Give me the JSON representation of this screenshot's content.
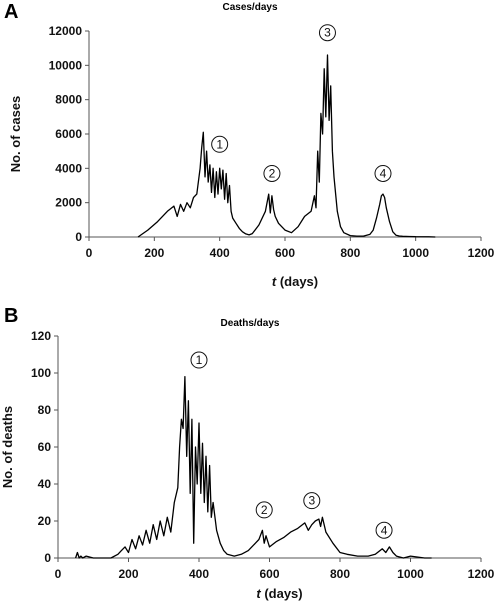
{
  "chart_data": [
    {
      "panel": "A",
      "type": "line",
      "title": "Cases/days",
      "xlabel_italic": "t",
      "xlabel_rest": " (days)",
      "ylabel": "No. of cases",
      "xlim": [
        0,
        1200
      ],
      "ylim": [
        0,
        12000
      ],
      "xticks": [
        0,
        200,
        400,
        600,
        800,
        1000,
        1200
      ],
      "yticks": [
        0,
        2000,
        4000,
        6000,
        8000,
        10000,
        12000
      ],
      "grid": false,
      "line_color": "#000000",
      "series": [
        {
          "x": [
            150,
            180,
            210,
            240,
            260,
            270,
            280,
            290,
            300,
            310,
            320,
            330,
            340,
            345,
            350,
            355,
            360,
            365,
            370,
            375,
            380,
            385,
            390,
            395,
            400,
            405,
            410,
            415,
            420,
            425,
            430,
            435,
            440,
            450,
            460,
            470,
            480,
            490,
            500,
            520,
            540,
            550,
            555,
            560,
            565,
            570,
            580,
            600,
            620,
            640,
            660,
            680,
            690,
            695,
            700,
            705,
            710,
            715,
            720,
            725,
            730,
            735,
            740,
            745,
            750,
            760,
            770,
            780,
            800,
            820,
            840,
            860,
            870,
            880,
            890,
            895,
            900,
            905,
            910,
            920,
            930,
            940,
            950,
            960,
            980,
            1000,
            1040,
            1060
          ],
          "y": [
            0,
            400,
            900,
            1500,
            1800,
            1200,
            1900,
            1500,
            2000,
            1700,
            2300,
            2500,
            4000,
            5200,
            6100,
            3500,
            5000,
            3200,
            4200,
            2600,
            4000,
            2300,
            3800,
            2500,
            4000,
            2800,
            3900,
            2200,
            3700,
            2000,
            3000,
            1500,
            1100,
            800,
            500,
            300,
            180,
            120,
            200,
            700,
            1500,
            2500,
            1400,
            2400,
            1600,
            1200,
            800,
            400,
            250,
            600,
            1200,
            1500,
            2400,
            1700,
            5000,
            3200,
            7200,
            6000,
            9800,
            7000,
            10600,
            6800,
            8800,
            5000,
            3500,
            1500,
            600,
            250,
            80,
            50,
            50,
            150,
            400,
            1100,
            1900,
            2400,
            2500,
            2300,
            1700,
            900,
            300,
            100,
            60,
            40,
            30,
            20,
            10,
            0
          ]
        }
      ],
      "peak_labels": [
        {
          "label": "1",
          "x": 400,
          "y": 5400
        },
        {
          "label": "2",
          "x": 560,
          "y": 3700
        },
        {
          "label": "3",
          "x": 730,
          "y": 11900
        },
        {
          "label": "4",
          "x": 900,
          "y": 3700
        }
      ]
    },
    {
      "panel": "B",
      "type": "line",
      "title": "Deaths/days",
      "xlabel_italic": "t",
      "xlabel_rest": " (days)",
      "ylabel": "No. of deaths",
      "xlim": [
        0,
        1200
      ],
      "ylim": [
        0,
        120
      ],
      "xticks": [
        0,
        200,
        400,
        600,
        800,
        1000,
        1200
      ],
      "yticks": [
        0,
        20,
        40,
        60,
        80,
        100,
        120
      ],
      "grid": false,
      "line_color": "#000000",
      "series": [
        {
          "x": [
            50,
            55,
            60,
            65,
            70,
            80,
            100,
            150,
            170,
            180,
            190,
            200,
            210,
            220,
            230,
            240,
            250,
            260,
            270,
            280,
            290,
            300,
            310,
            320,
            330,
            340,
            345,
            350,
            355,
            360,
            365,
            370,
            375,
            380,
            385,
            390,
            395,
            400,
            405,
            410,
            415,
            420,
            425,
            430,
            435,
            440,
            450,
            460,
            470,
            480,
            500,
            520,
            540,
            560,
            570,
            580,
            585,
            590,
            600,
            620,
            640,
            660,
            680,
            700,
            710,
            720,
            730,
            740,
            745,
            750,
            760,
            780,
            800,
            820,
            850,
            880,
            900,
            920,
            930,
            940,
            950,
            960,
            980,
            1000,
            1040,
            1060
          ],
          "y": [
            0,
            3,
            0,
            1,
            0,
            1,
            0,
            0,
            2,
            4,
            6,
            3,
            10,
            5,
            12,
            7,
            15,
            8,
            18,
            10,
            20,
            12,
            22,
            14,
            30,
            38,
            60,
            75,
            70,
            98,
            55,
            85,
            35,
            75,
            8,
            60,
            40,
            73,
            35,
            62,
            30,
            55,
            25,
            50,
            22,
            30,
            15,
            8,
            4,
            2,
            1,
            2,
            4,
            8,
            10,
            15,
            8,
            12,
            6,
            9,
            11,
            14,
            16,
            19,
            15,
            18,
            20,
            21,
            17,
            22,
            14,
            8,
            3,
            2,
            1,
            1,
            2,
            5,
            3,
            6,
            3,
            1,
            0,
            1,
            0,
            0
          ]
        }
      ],
      "peak_labels": [
        {
          "label": "1",
          "x": 400,
          "y": 107
        },
        {
          "label": "2",
          "x": 585,
          "y": 26
        },
        {
          "label": "3",
          "x": 720,
          "y": 31
        },
        {
          "label": "4",
          "x": 925,
          "y": 15
        }
      ]
    }
  ]
}
